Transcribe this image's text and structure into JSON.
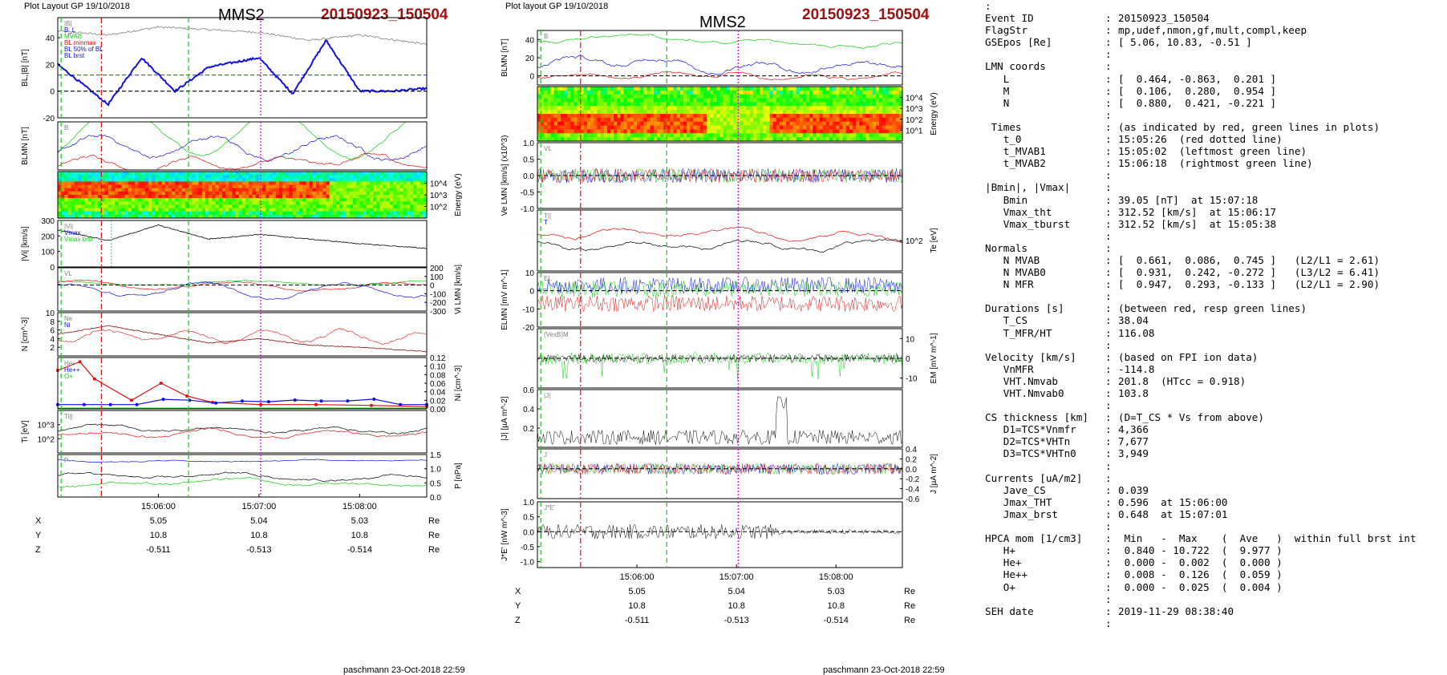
{
  "header": {
    "left_label": "Plot Layout GP 19/10/2018",
    "middle_label": "Plot layout GP 19/10/2018",
    "spacecraft": "MMS2",
    "event": "20150923_150504",
    "footer": "paschmann 23-Oct-2018 22:59"
  },
  "colors": {
    "blue": "#1010e0",
    "red": "#e01010",
    "green": "#10d010",
    "black": "#000000",
    "grey": "#808080",
    "magenta": "#e000e0",
    "darkred": "#801010",
    "eventred": "#a01010",
    "teal": "#008080"
  },
  "time_axis": {
    "range": [
      "15:05:00",
      "15:08:40"
    ],
    "ticks": [
      "15:06:00",
      "15:07:00",
      "15:08:00"
    ],
    "markers": [
      {
        "time": "15:05:26",
        "color": "red",
        "style": "dashdot"
      },
      {
        "time": "15:05:02",
        "color": "green",
        "style": "dash"
      },
      {
        "time": "15:06:18",
        "color": "green",
        "style": "dash"
      },
      {
        "time": "15:07:01",
        "color": "magenta",
        "style": "dot"
      }
    ],
    "position_rows": [
      {
        "label": "X",
        "values": [
          "5.05",
          "5.04",
          "5.03"
        ],
        "unit": "Re"
      },
      {
        "label": "Y",
        "values": [
          "10.8",
          "10.8",
          "10.8"
        ],
        "unit": "Re"
      },
      {
        "label": "Z",
        "values": [
          "-0.511",
          "-0.513",
          "-0.514"
        ],
        "unit": "Re"
      }
    ]
  },
  "chart_data": [
    {
      "type": "line",
      "panel": "left-1",
      "ylabel": "BL,|B| [nT]",
      "ylim": [
        -20,
        55
      ],
      "yticks": [
        "-20",
        "0",
        "20",
        "40"
      ],
      "legend": [
        "|B|",
        "B_L",
        "MVAB",
        "BL minmax",
        "BL 50% of BL",
        "BL brst"
      ],
      "series": [
        {
          "name": "|B|",
          "color": "grey",
          "x": [
            "15:05:00",
            "15:05:30",
            "15:06:00",
            "15:06:30",
            "15:07:00",
            "15:07:30",
            "15:08:00",
            "15:08:40"
          ],
          "values": [
            45,
            42,
            48,
            46,
            44,
            38,
            42,
            35
          ]
        },
        {
          "name": "B_L",
          "color": "blue",
          "x": [
            "15:05:00",
            "15:05:10",
            "15:05:30",
            "15:05:50",
            "15:06:10",
            "15:06:30",
            "15:07:00",
            "15:07:20",
            "15:07:40",
            "15:08:00",
            "15:08:20",
            "15:08:40"
          ],
          "values": [
            20,
            10,
            -10,
            25,
            0,
            18,
            25,
            -2,
            38,
            0,
            0,
            2
          ]
        }
      ]
    },
    {
      "type": "line",
      "panel": "left-2",
      "ylabel": "BLMN [nT]",
      "legend": [
        "B"
      ],
      "series": []
    },
    {
      "type": "heatmap",
      "panel": "left-3",
      "ylabel": "Energy (eV)",
      "yticks": [
        "10^2",
        "10^3",
        "10^4"
      ]
    },
    {
      "type": "line",
      "panel": "left-4",
      "ylabel": "|Vi| [km/s]",
      "ylim": [
        0,
        300
      ],
      "yticks": [
        "0",
        "100",
        "200",
        "300"
      ],
      "legend": [
        "|Vi|",
        "Vmax",
        "Vmax brst"
      ],
      "series": [
        {
          "name": "|Vi|",
          "color": "black",
          "x": [
            "15:05:00",
            "15:05:30",
            "15:06:00",
            "15:06:30",
            "15:07:00",
            "15:07:30",
            "15:08:00",
            "15:08:40"
          ],
          "values": [
            240,
            170,
            270,
            180,
            210,
            180,
            150,
            120
          ]
        }
      ]
    },
    {
      "type": "line",
      "panel": "left-5",
      "ylabel": "Vi LMN [km/s]",
      "ylim": [
        -300,
        200
      ],
      "yticks": [
        "-300",
        "-200",
        "-100",
        "0",
        "100",
        "200"
      ],
      "legend": [
        "VL"
      ],
      "series": []
    },
    {
      "type": "line",
      "panel": "left-6",
      "ylabel": "N [cm^-3]",
      "ylim": [
        0,
        10
      ],
      "yticks": [
        "2",
        "4",
        "6",
        "8",
        "10"
      ],
      "legend": [
        "Ne",
        "Ni"
      ],
      "series": [
        {
          "name": "Ni",
          "color": "darkred",
          "x": [
            "15:05:00",
            "15:05:30",
            "15:06:00",
            "15:06:30",
            "15:07:00",
            "15:07:30",
            "15:08:00",
            "15:08:40"
          ],
          "values": [
            5,
            7,
            5,
            3,
            4,
            2.5,
            2,
            1
          ]
        }
      ]
    },
    {
      "type": "line",
      "panel": "left-7",
      "ylabel": "Ni [cm^-3]",
      "ylim": [
        0,
        0.12
      ],
      "yticks": [
        "0.00",
        "0.02",
        "0.04",
        "0.06",
        "0.08",
        "0.10",
        "0.12"
      ],
      "legend": [
        "He+",
        "He++",
        "O+"
      ],
      "series": []
    },
    {
      "type": "line",
      "panel": "left-8",
      "ylabel": "Ti [eV]",
      "yticks": [
        "10^2",
        "10^3"
      ],
      "legend": [
        "Ti||"
      ],
      "series": []
    },
    {
      "type": "line",
      "panel": "left-9",
      "ylabel": "P [nPa]",
      "ylim": [
        0,
        1.5
      ],
      "yticks": [
        "0.0",
        "0.5",
        "1.0",
        "1.5"
      ],
      "legend": [
        "P"
      ],
      "series": []
    },
    {
      "type": "line",
      "panel": "mid-1",
      "ylabel": "BLMN [nT]",
      "ylim": [
        -10,
        50
      ],
      "yticks": [
        "0",
        "20",
        "40"
      ],
      "legend": [
        "B"
      ],
      "series": []
    },
    {
      "type": "heatmap",
      "panel": "mid-2",
      "ylabel": "Energy (eV)",
      "yticks": [
        "10^1",
        "10^2",
        "10^3",
        "10^4"
      ]
    },
    {
      "type": "line",
      "panel": "mid-3",
      "ylabel": "Ve LMN [km/s] (x10^3)",
      "ylim": [
        -1.0,
        1.0
      ],
      "yticks": [
        "-1.0",
        "-0.5",
        "0.0",
        "0.5",
        "1.0"
      ],
      "legend": [
        "VL"
      ],
      "series": []
    },
    {
      "type": "line",
      "panel": "mid-4",
      "ylabel": "Te [eV]",
      "yticks": [
        "10^2"
      ],
      "legend": [
        "T||",
        "T"
      ],
      "series": []
    },
    {
      "type": "line",
      "panel": "mid-5",
      "ylabel": "ELMN [mV m^-1]",
      "ylim": [
        -20,
        10
      ],
      "yticks": [
        "-20",
        "-10",
        "0",
        "10"
      ],
      "legend": [
        "EL"
      ],
      "series": []
    },
    {
      "type": "line",
      "panel": "mid-6",
      "ylabel": "EM [mV m^-1]",
      "ylim": [
        -15,
        15
      ],
      "yticks": [
        "-10",
        "0",
        "10"
      ],
      "legend": [
        "(VexB)M"
      ],
      "series": []
    },
    {
      "type": "line",
      "panel": "mid-7",
      "ylabel": "|J| [µA m^-2]",
      "ylim": [
        0,
        0.6
      ],
      "yticks": [
        "0.2",
        "0.4",
        "0.6"
      ],
      "legend": [
        "|J|"
      ],
      "series": []
    },
    {
      "type": "line",
      "panel": "mid-8",
      "ylabel": "J [µA m^-2]",
      "ylim": [
        -0.6,
        0.4
      ],
      "yticks": [
        "-0.6",
        "-0.4",
        "-0.2",
        "0.0",
        "0.2",
        "0.4"
      ],
      "legend": [
        "J"
      ],
      "series": []
    },
    {
      "type": "line",
      "panel": "mid-9",
      "ylabel": "J*E' [nW m^-3]",
      "ylim": [
        -1.2,
        1.0
      ],
      "yticks": [
        "-1.0",
        "-0.5",
        "0.0",
        "0.5",
        "1.0"
      ],
      "legend": [
        "J*E'"
      ],
      "series": []
    }
  ],
  "info_lines": [
    {
      "l": ":",
      "v": ""
    },
    {
      "l": "Event ID",
      "v": "20150923_150504"
    },
    {
      "l": "FlagStr",
      "v": "mp,udef,nmon,gf,mult,compl,keep"
    },
    {
      "l": "GSEpos [Re]",
      "v": "[ 5.06, 10.83, -0.51 ]"
    },
    {
      "l": "",
      "v": ""
    },
    {
      "l": "LMN coords",
      "v": ""
    },
    {
      "l": "   L",
      "v": "[  0.464, -0.863,  0.201 ]"
    },
    {
      "l": "   M",
      "v": "[  0.106,  0.280,  0.954 ]"
    },
    {
      "l": "   N",
      "v": "[  0.880,  0.421, -0.221 ]"
    },
    {
      "l": "",
      "v": ""
    },
    {
      "l": " Times",
      "v": "(as indicated by red, green lines in plots)"
    },
    {
      "l": "   t_0",
      "v": "15:05:26  (red dotted line)"
    },
    {
      "l": "   t_MVAB1",
      "v": "15:05:02  (leftmost green line)"
    },
    {
      "l": "   t_MVAB2",
      "v": "15:06:18  (rightmost green line)"
    },
    {
      "l": "",
      "v": ""
    },
    {
      "l": "|Bmin|, |Vmax|",
      "v": ""
    },
    {
      "l": "   Bmin",
      "v": "39.05 [nT]  at 15:07:18"
    },
    {
      "l": "   Vmax_tht",
      "v": "312.52 [km/s]  at 15:06:17"
    },
    {
      "l": "   Vmax_tburst",
      "v": "312.52 [km/s]  at 15:05:38"
    },
    {
      "l": "",
      "v": ""
    },
    {
      "l": "Normals",
      "v": ""
    },
    {
      "l": "   N MVAB",
      "v": "[  0.661,  0.086,  0.745 ]   (L2/L1 = 2.61)"
    },
    {
      "l": "   N MVAB0",
      "v": "[  0.931,  0.242, -0.272 ]   (L3/L2 = 6.41)"
    },
    {
      "l": "   N MFR",
      "v": "[  0.947,  0.293, -0.133 ]   (L2/L1 = 2.90)"
    },
    {
      "l": "",
      "v": ""
    },
    {
      "l": "Durations [s]",
      "v": "(between red, resp green lines)"
    },
    {
      "l": "   T_CS",
      "v": "38.04"
    },
    {
      "l": "   T_MFR/HT",
      "v": "116.08"
    },
    {
      "l": "",
      "v": ""
    },
    {
      "l": "Velocity [km/s]",
      "v": "(based on FPI ion data)"
    },
    {
      "l": "   VnMFR",
      "v": "-114.8"
    },
    {
      "l": "   VHT.Nmvab",
      "v": "201.8  (HTcc = 0.918)"
    },
    {
      "l": "   VHT.Nmvab0",
      "v": "103.8"
    },
    {
      "l": "",
      "v": ""
    },
    {
      "l": "CS thickness [km]",
      "v": "(D=T_CS * Vs from above)"
    },
    {
      "l": "   D1=TCS*Vnmfr",
      "v": "4,366"
    },
    {
      "l": "   D2=TCS*VHTn",
      "v": "7,677"
    },
    {
      "l": "   D3=TCS*VHTn0",
      "v": "3,949"
    },
    {
      "l": "",
      "v": ""
    },
    {
      "l": "Currents [uA/m2]",
      "v": ""
    },
    {
      "l": "   Jave_CS",
      "v": "0.039"
    },
    {
      "l": "   Jmax_THT",
      "v": "0.596  at 15:06:00"
    },
    {
      "l": "   Jmax_brst",
      "v": "0.648  at 15:07:01"
    },
    {
      "l": "",
      "v": ""
    },
    {
      "l": "HPCA mom [1/cm3]",
      "v": " Min   -  Max    (  Ave   )  within full brst int"
    },
    {
      "l": "   H+",
      "v": " 0.840 - 10.722  (  9.977 )"
    },
    {
      "l": "   He+",
      "v": " 0.000 -  0.002  (  0.000 )"
    },
    {
      "l": "   He++",
      "v": " 0.008 -  0.126  (  0.059 )"
    },
    {
      "l": "   O+",
      "v": " 0.000 -  0.025  (  0.004 )"
    },
    {
      "l": "",
      "v": ""
    },
    {
      "l": "SEH date",
      "v": "2019-11-29 08:38:40"
    },
    {
      "l": "",
      "v": ""
    }
  ]
}
